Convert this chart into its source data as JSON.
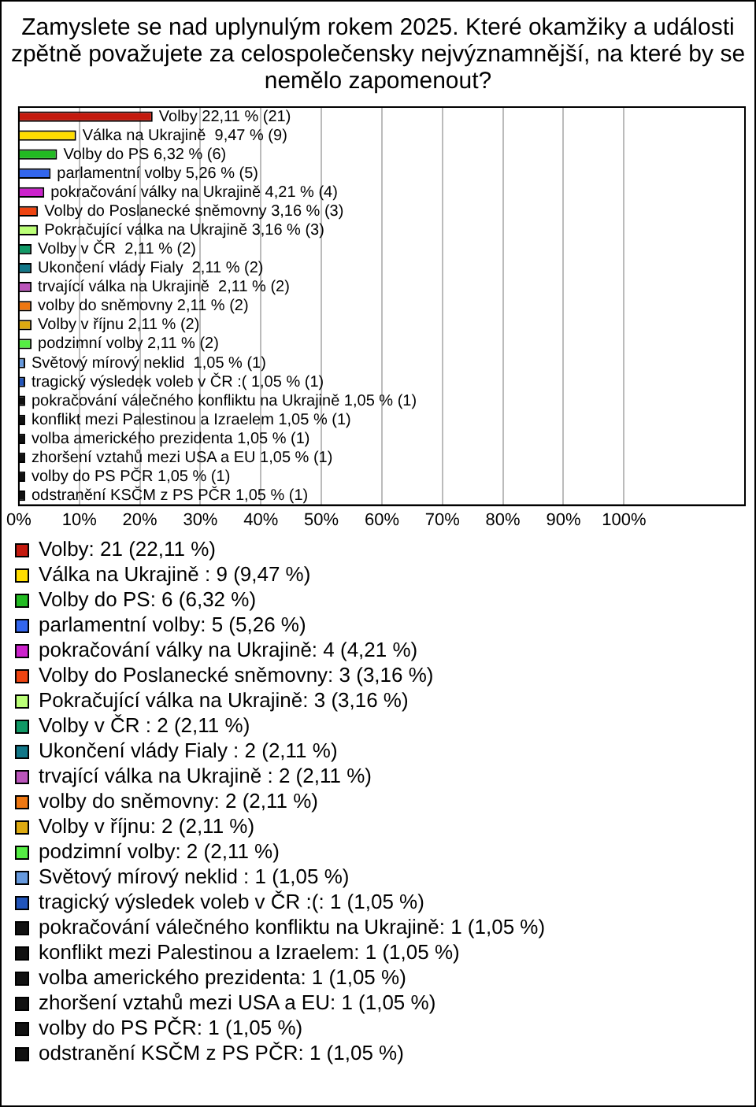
{
  "chart_data": {
    "type": "bar",
    "orientation": "horizontal",
    "stacked": true,
    "title": "Zamyslete se nad uplynulým rokem 2025. Které okamžiky a události zpětně považujete za celospolečensky nejvýznamnější, na které by se nemělo zapomenout?",
    "categories": [
      null,
      null,
      null,
      null,
      null,
      null,
      null,
      null,
      null,
      null,
      null,
      null,
      null,
      null,
      null,
      null,
      null,
      null,
      null,
      null,
      null
    ],
    "series": [
      {
        "name": "Volby: 21 (22,11 %)",
        "color": "#c41a0e",
        "values": [
          22.11,
          null,
          null,
          null,
          null,
          null,
          null,
          null,
          null,
          null,
          null,
          null,
          null,
          null,
          null,
          null,
          null,
          null,
          null,
          null,
          null
        ],
        "value_labels": [
          "Volby 22,11 % (21)",
          null,
          null,
          null,
          null,
          null,
          null,
          null,
          null,
          null,
          null,
          null,
          null,
          null,
          null,
          null,
          null,
          null,
          null,
          null,
          null
        ]
      },
      {
        "name": "Válka na Ukrajině : 9 (9,47 %)",
        "color": "#ffdd00",
        "values": [
          null,
          9.47,
          null,
          null,
          null,
          null,
          null,
          null,
          null,
          null,
          null,
          null,
          null,
          null,
          null,
          null,
          null,
          null,
          null,
          null,
          null
        ],
        "value_labels": [
          null,
          "Válka na Ukrajině  9,47 % (9)",
          null,
          null,
          null,
          null,
          null,
          null,
          null,
          null,
          null,
          null,
          null,
          null,
          null,
          null,
          null,
          null,
          null,
          null,
          null
        ]
      },
      {
        "name": "Volby do PS: 6 (6,32 %)",
        "color": "#22bb22",
        "values": [
          null,
          null,
          6.32,
          null,
          null,
          null,
          null,
          null,
          null,
          null,
          null,
          null,
          null,
          null,
          null,
          null,
          null,
          null,
          null,
          null,
          null
        ],
        "value_labels": [
          null,
          null,
          "Volby do PS 6,32 % (6)",
          null,
          null,
          null,
          null,
          null,
          null,
          null,
          null,
          null,
          null,
          null,
          null,
          null,
          null,
          null,
          null,
          null,
          null
        ]
      },
      {
        "name": "parlamentní volby: 5 (5,26 %)",
        "color": "#3366ee",
        "values": [
          null,
          null,
          null,
          5.26,
          null,
          null,
          null,
          null,
          null,
          null,
          null,
          null,
          null,
          null,
          null,
          null,
          null,
          null,
          null,
          null,
          null
        ],
        "value_labels": [
          null,
          null,
          null,
          "parlamentní volby 5,26 % (5)",
          null,
          null,
          null,
          null,
          null,
          null,
          null,
          null,
          null,
          null,
          null,
          null,
          null,
          null,
          null,
          null,
          null
        ]
      },
      {
        "name": "pokračování války na Ukrajině: 4 (4,21 %)",
        "color": "#cc22cc",
        "values": [
          null,
          null,
          null,
          null,
          4.21,
          null,
          null,
          null,
          null,
          null,
          null,
          null,
          null,
          null,
          null,
          null,
          null,
          null,
          null,
          null,
          null
        ],
        "value_labels": [
          null,
          null,
          null,
          null,
          "pokračování války na Ukrajině 4,21 % (4)",
          null,
          null,
          null,
          null,
          null,
          null,
          null,
          null,
          null,
          null,
          null,
          null,
          null,
          null,
          null,
          null
        ]
      },
      {
        "name": "Volby do Poslanecké sněmovny: 3 (3,16 %)",
        "color": "#ee4411",
        "values": [
          null,
          null,
          null,
          null,
          null,
          3.16,
          null,
          null,
          null,
          null,
          null,
          null,
          null,
          null,
          null,
          null,
          null,
          null,
          null,
          null,
          null
        ],
        "value_labels": [
          null,
          null,
          null,
          null,
          null,
          "Volby do Poslanecké sněmovny 3,16 % (3)",
          null,
          null,
          null,
          null,
          null,
          null,
          null,
          null,
          null,
          null,
          null,
          null,
          null,
          null,
          null
        ]
      },
      {
        "name": "Pokračující válka na Ukrajině: 3 (3,16 %)",
        "color": "#bbff77",
        "values": [
          null,
          null,
          null,
          null,
          null,
          null,
          3.16,
          null,
          null,
          null,
          null,
          null,
          null,
          null,
          null,
          null,
          null,
          null,
          null,
          null,
          null
        ],
        "value_labels": [
          null,
          null,
          null,
          null,
          null,
          null,
          "Pokračující válka na Ukrajině 3,16 % (3)",
          null,
          null,
          null,
          null,
          null,
          null,
          null,
          null,
          null,
          null,
          null,
          null,
          null,
          null
        ]
      },
      {
        "name": "Volby v ČR : 2 (2,11 %)",
        "color": "#119966",
        "values": [
          null,
          null,
          null,
          null,
          null,
          null,
          null,
          2.11,
          null,
          null,
          null,
          null,
          null,
          null,
          null,
          null,
          null,
          null,
          null,
          null,
          null
        ],
        "value_labels": [
          null,
          null,
          null,
          null,
          null,
          null,
          null,
          "Volby v ČR  2,11 % (2)",
          null,
          null,
          null,
          null,
          null,
          null,
          null,
          null,
          null,
          null,
          null,
          null,
          null
        ]
      },
      {
        "name": "Ukončení vlády Fialy : 2 (2,11 %)",
        "color": "#117788",
        "values": [
          null,
          null,
          null,
          null,
          null,
          null,
          null,
          null,
          2.11,
          null,
          null,
          null,
          null,
          null,
          null,
          null,
          null,
          null,
          null,
          null,
          null
        ],
        "value_labels": [
          null,
          null,
          null,
          null,
          null,
          null,
          null,
          null,
          "Ukončení vlády Fialy  2,11 % (2)",
          null,
          null,
          null,
          null,
          null,
          null,
          null,
          null,
          null,
          null,
          null,
          null
        ]
      },
      {
        "name": "trvající válka na Ukrajině : 2 (2,11 %)",
        "color": "#bb55bb",
        "values": [
          null,
          null,
          null,
          null,
          null,
          null,
          null,
          null,
          null,
          2.11,
          null,
          null,
          null,
          null,
          null,
          null,
          null,
          null,
          null,
          null,
          null
        ],
        "value_labels": [
          null,
          null,
          null,
          null,
          null,
          null,
          null,
          null,
          null,
          "trvající válka na Ukrajině  2,11 % (2)",
          null,
          null,
          null,
          null,
          null,
          null,
          null,
          null,
          null,
          null,
          null
        ]
      },
      {
        "name": "volby do sněmovny: 2 (2,11 %)",
        "color": "#ee7711",
        "values": [
          null,
          null,
          null,
          null,
          null,
          null,
          null,
          null,
          null,
          null,
          2.11,
          null,
          null,
          null,
          null,
          null,
          null,
          null,
          null,
          null,
          null
        ],
        "value_labels": [
          null,
          null,
          null,
          null,
          null,
          null,
          null,
          null,
          null,
          null,
          "volby do sněmovny 2,11 % (2)",
          null,
          null,
          null,
          null,
          null,
          null,
          null,
          null,
          null,
          null
        ]
      },
      {
        "name": "Volby v říjnu: 2 (2,11 %)",
        "color": "#ddaa11",
        "values": [
          null,
          null,
          null,
          null,
          null,
          null,
          null,
          null,
          null,
          null,
          null,
          2.11,
          null,
          null,
          null,
          null,
          null,
          null,
          null,
          null,
          null
        ],
        "value_labels": [
          null,
          null,
          null,
          null,
          null,
          null,
          null,
          null,
          null,
          null,
          null,
          "Volby v říjnu 2,11 % (2)",
          null,
          null,
          null,
          null,
          null,
          null,
          null,
          null,
          null
        ]
      },
      {
        "name": "podzimní volby: 2 (2,11 %)",
        "color": "#55ee44",
        "values": [
          null,
          null,
          null,
          null,
          null,
          null,
          null,
          null,
          null,
          null,
          null,
          null,
          2.11,
          null,
          null,
          null,
          null,
          null,
          null,
          null,
          null
        ],
        "value_labels": [
          null,
          null,
          null,
          null,
          null,
          null,
          null,
          null,
          null,
          null,
          null,
          null,
          "podzimní volby 2,11 % (2)",
          null,
          null,
          null,
          null,
          null,
          null,
          null,
          null
        ]
      },
      {
        "name": "Světový mírový neklid : 1 (1,05 %)",
        "color": "#6699dd",
        "values": [
          null,
          null,
          null,
          null,
          null,
          null,
          null,
          null,
          null,
          null,
          null,
          null,
          null,
          1.05,
          null,
          null,
          null,
          null,
          null,
          null,
          null
        ],
        "value_labels": [
          null,
          null,
          null,
          null,
          null,
          null,
          null,
          null,
          null,
          null,
          null,
          null,
          null,
          "Světový mírový neklid  1,05 % (1)",
          null,
          null,
          null,
          null,
          null,
          null,
          null
        ]
      },
      {
        "name": "tragický výsledek voleb v ČR :(: 1 (1,05 %)",
        "color": "#2255bb",
        "values": [
          null,
          null,
          null,
          null,
          null,
          null,
          null,
          null,
          null,
          null,
          null,
          null,
          null,
          null,
          1.05,
          null,
          null,
          null,
          null,
          null,
          null
        ],
        "value_labels": [
          null,
          null,
          null,
          null,
          null,
          null,
          null,
          null,
          null,
          null,
          null,
          null,
          null,
          null,
          "tragický výsledek voleb v ČR :( 1,05 % (1)",
          null,
          null,
          null,
          null,
          null,
          null
        ]
      },
      {
        "name": "pokračování válečného konfliktu na Ukrajině: 1 (1,05 %)",
        "color": "#111111",
        "values": [
          null,
          null,
          null,
          null,
          null,
          null,
          null,
          null,
          null,
          null,
          null,
          null,
          null,
          null,
          null,
          1.05,
          null,
          null,
          null,
          null,
          null
        ],
        "value_labels": [
          null,
          null,
          null,
          null,
          null,
          null,
          null,
          null,
          null,
          null,
          null,
          null,
          null,
          null,
          null,
          "pokračování válečného konfliktu na Ukrajině 1,05 % (1)",
          null,
          null,
          null,
          null,
          null
        ]
      },
      {
        "name": "konflikt mezi Palestinou a Izraelem: 1 (1,05 %)",
        "color": "#111111",
        "values": [
          null,
          null,
          null,
          null,
          null,
          null,
          null,
          null,
          null,
          null,
          null,
          null,
          null,
          null,
          null,
          null,
          1.05,
          null,
          null,
          null,
          null
        ],
        "value_labels": [
          null,
          null,
          null,
          null,
          null,
          null,
          null,
          null,
          null,
          null,
          null,
          null,
          null,
          null,
          null,
          null,
          "konflikt mezi Palestinou a Izraelem 1,05 % (1)",
          null,
          null,
          null,
          null
        ]
      },
      {
        "name": "volba amerického prezidenta: 1 (1,05 %)",
        "color": "#111111",
        "values": [
          null,
          null,
          null,
          null,
          null,
          null,
          null,
          null,
          null,
          null,
          null,
          null,
          null,
          null,
          null,
          null,
          null,
          1.05,
          null,
          null,
          null
        ],
        "value_labels": [
          null,
          null,
          null,
          null,
          null,
          null,
          null,
          null,
          null,
          null,
          null,
          null,
          null,
          null,
          null,
          null,
          null,
          "volba amerického prezidenta 1,05 % (1)",
          null,
          null,
          null
        ]
      },
      {
        "name": "zhoršení vztahů mezi USA a EU: 1 (1,05 %)",
        "color": "#111111",
        "values": [
          null,
          null,
          null,
          null,
          null,
          null,
          null,
          null,
          null,
          null,
          null,
          null,
          null,
          null,
          null,
          null,
          null,
          null,
          1.05,
          null,
          null
        ],
        "value_labels": [
          null,
          null,
          null,
          null,
          null,
          null,
          null,
          null,
          null,
          null,
          null,
          null,
          null,
          null,
          null,
          null,
          null,
          null,
          "zhoršení vztahů mezi USA a EU 1,05 % (1)",
          null,
          null
        ]
      },
      {
        "name": "volby do PS PČR: 1 (1,05 %)",
        "color": "#111111",
        "values": [
          null,
          null,
          null,
          null,
          null,
          null,
          null,
          null,
          null,
          null,
          null,
          null,
          null,
          null,
          null,
          null,
          null,
          null,
          null,
          1.05,
          null
        ],
        "value_labels": [
          null,
          null,
          null,
          null,
          null,
          null,
          null,
          null,
          null,
          null,
          null,
          null,
          null,
          null,
          null,
          null,
          null,
          null,
          null,
          "volby do PS PČR 1,05 % (1)",
          null
        ]
      },
      {
        "name": "odstranění KSČM z PS PČR: 1 (1,05 %)",
        "color": "#111111",
        "values": [
          null,
          null,
          null,
          null,
          null,
          null,
          null,
          null,
          null,
          null,
          null,
          null,
          null,
          null,
          null,
          null,
          null,
          null,
          null,
          null,
          1.05
        ],
        "value_labels": [
          null,
          null,
          null,
          null,
          null,
          null,
          null,
          null,
          null,
          null,
          null,
          null,
          null,
          null,
          null,
          null,
          null,
          null,
          null,
          null,
          "odstranění KSČM z PS PČR 1,05 % (1)"
        ]
      }
    ],
    "xlim": [
      0,
      120
    ],
    "xticks": [
      {
        "value": 0,
        "label": "0%"
      },
      {
        "value": 10,
        "label": "10%"
      },
      {
        "value": 20,
        "label": "20%"
      },
      {
        "value": 30,
        "label": "30%"
      },
      {
        "value": 40,
        "label": "40%"
      },
      {
        "value": 50,
        "label": "50%"
      },
      {
        "value": 60,
        "label": "60%"
      },
      {
        "value": 70,
        "label": "70%"
      },
      {
        "value": 80,
        "label": "80%"
      },
      {
        "value": 90,
        "label": "90%"
      },
      {
        "value": 100,
        "label": "100%"
      }
    ],
    "grid": "x",
    "tick_labels": "x",
    "legend": "bottom"
  }
}
